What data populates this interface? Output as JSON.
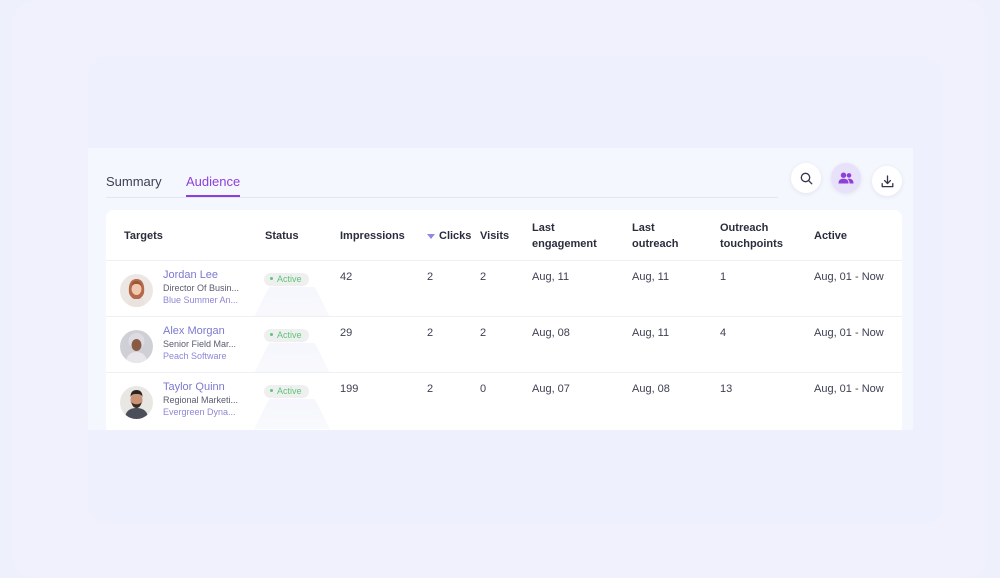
{
  "tabs": [
    {
      "label": "Summary",
      "active": false
    },
    {
      "label": "Audience",
      "active": true
    }
  ],
  "toolbar": {
    "search_icon": "search-icon",
    "people_icon": "people-icon",
    "download_icon": "download-icon"
  },
  "colors": {
    "accent": "#8e3fd8",
    "status_green": "#5fc37b",
    "link": "#7c79cf"
  },
  "table": {
    "headers": {
      "targets": "Targets",
      "status": "Status",
      "impressions": "Impressions",
      "clicks": "Clicks",
      "visits": "Visits",
      "last_engagement_1": "Last",
      "last_engagement_2": "engagement",
      "last_outreach_1": "Last",
      "last_outreach_2": "outreach",
      "outreach_touchpoints_1": "Outreach",
      "outreach_touchpoints_2": "touchpoints",
      "active": "Active"
    },
    "rows": [
      {
        "name": "Jordan Lee",
        "title": "Director Of Busin...",
        "company": "Blue Summer An...",
        "status": "Active",
        "impressions": "42",
        "clicks": "2",
        "visits": "2",
        "last_engagement": "Aug, 11",
        "last_outreach": "Aug, 11",
        "outreach_touchpoints": "1",
        "active": "Aug, 01 - Now"
      },
      {
        "name": "Alex Morgan",
        "title": "Senior Field Mar...",
        "company": "Peach Software",
        "status": "Active",
        "impressions": "29",
        "clicks": "2",
        "visits": "2",
        "last_engagement": "Aug, 08",
        "last_outreach": "Aug, 11",
        "outreach_touchpoints": "4",
        "active": "Aug, 01 - Now"
      },
      {
        "name": "Taylor Quinn",
        "title": "Regional Marketi...",
        "company": "Evergreen Dyna...",
        "status": "Active",
        "impressions": "199",
        "clicks": "2",
        "visits": "0",
        "last_engagement": "Aug, 07",
        "last_outreach": "Aug, 08",
        "outreach_touchpoints": "13",
        "active": "Aug, 01 - Now"
      }
    ]
  }
}
